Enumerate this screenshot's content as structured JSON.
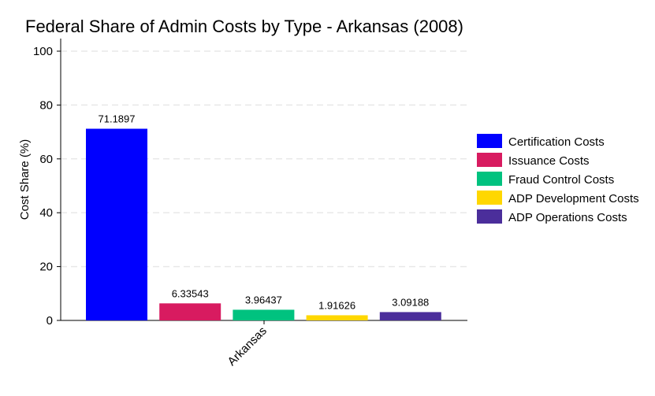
{
  "chart_data": {
    "type": "bar",
    "title": "Federal Share of Admin Costs by Type - Arkansas (2008)",
    "xlabel": "",
    "ylabel": "Cost Share (%)",
    "categories": [
      "Arkansas"
    ],
    "ylim": [
      0,
      100
    ],
    "yticks": [
      0,
      20,
      40,
      60,
      80,
      100
    ],
    "grid": true,
    "legend_position": "right",
    "series": [
      {
        "name": "Certification Costs",
        "values": [
          71.1897
        ],
        "label": "71.1897",
        "color": "#0000ff"
      },
      {
        "name": "Issuance Costs",
        "values": [
          6.33543
        ],
        "label": "6.33543",
        "color": "#d81b60"
      },
      {
        "name": "Fraud Control Costs",
        "values": [
          3.96437
        ],
        "label": "3.96437",
        "color": "#00c27f"
      },
      {
        "name": "ADP Development Costs",
        "values": [
          1.91626
        ],
        "label": "1.91626",
        "color": "#ffd700"
      },
      {
        "name": "ADP Operations Costs",
        "values": [
          3.09188
        ],
        "label": "3.09188",
        "color": "#4b2e9b"
      }
    ]
  }
}
